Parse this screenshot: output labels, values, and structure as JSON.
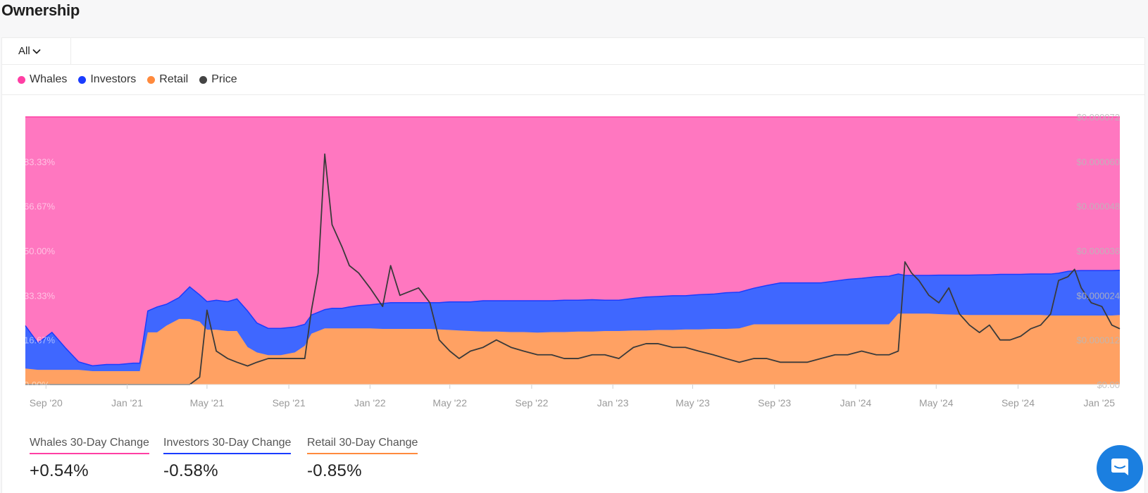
{
  "page": {
    "title": "Ownership"
  },
  "filter": {
    "selected": "All"
  },
  "legend": [
    {
      "label": "Whales",
      "color": "#ff3fa4"
    },
    {
      "label": "Investors",
      "color": "#1a3cff"
    },
    {
      "label": "Retail",
      "color": "#ff8a3d"
    },
    {
      "label": "Price",
      "color": "#444444"
    }
  ],
  "stats": [
    {
      "label": "Whales 30-Day Change",
      "value": "+0.54%",
      "color": "#ff3fa4"
    },
    {
      "label": "Investors 30-Day Change",
      "value": "-0.58%",
      "color": "#1a3cff"
    },
    {
      "label": "Retail 30-Day Change",
      "value": "-0.85%",
      "color": "#ff8a3d"
    }
  ],
  "chart_data": {
    "type": "area",
    "title": "Ownership",
    "x": [
      "2020-08-01",
      "2020-08-20",
      "2020-09-10",
      "2020-10-01",
      "2020-10-20",
      "2020-11-10",
      "2020-12-01",
      "2020-12-20",
      "2021-01-10",
      "2021-01-20",
      "2021-02-01",
      "2021-02-15",
      "2021-03-01",
      "2021-03-20",
      "2021-04-05",
      "2021-04-20",
      "2021-05-01",
      "2021-05-15",
      "2021-06-01",
      "2021-06-15",
      "2021-07-01",
      "2021-07-15",
      "2021-08-01",
      "2021-08-20",
      "2021-09-10",
      "2021-09-25",
      "2021-10-05",
      "2021-10-15",
      "2021-10-25",
      "2021-11-05",
      "2021-11-20",
      "2021-12-01",
      "2021-12-15",
      "2022-01-01",
      "2022-01-20",
      "2022-02-01",
      "2022-02-15",
      "2022-03-01",
      "2022-03-15",
      "2022-04-01",
      "2022-04-15",
      "2022-05-01",
      "2022-05-15",
      "2022-06-01",
      "2022-06-20",
      "2022-07-10",
      "2022-08-01",
      "2022-08-20",
      "2022-09-10",
      "2022-10-01",
      "2022-10-20",
      "2022-11-10",
      "2022-12-01",
      "2022-12-20",
      "2023-01-10",
      "2023-02-01",
      "2023-02-20",
      "2023-03-10",
      "2023-04-01",
      "2023-04-20",
      "2023-05-10",
      "2023-06-01",
      "2023-06-20",
      "2023-07-10",
      "2023-08-01",
      "2023-08-20",
      "2023-09-10",
      "2023-10-01",
      "2023-10-20",
      "2023-11-10",
      "2023-12-01",
      "2023-12-20",
      "2024-01-10",
      "2024-02-01",
      "2024-02-20",
      "2024-03-05",
      "2024-03-15",
      "2024-03-25",
      "2024-04-05",
      "2024-04-20",
      "2024-05-05",
      "2024-05-20",
      "2024-06-05",
      "2024-06-20",
      "2024-07-05",
      "2024-07-20",
      "2024-08-05",
      "2024-08-20",
      "2024-09-05",
      "2024-09-20",
      "2024-10-05",
      "2024-10-20",
      "2024-11-01",
      "2024-11-15",
      "2024-11-25",
      "2024-12-05",
      "2024-12-20",
      "2025-01-05",
      "2025-01-20",
      "2025-02-01"
    ],
    "series": [
      {
        "name": "Retail",
        "axis": "left",
        "stacked": true,
        "values": [
          6,
          5.5,
          5.5,
          5.5,
          5.5,
          5,
          5,
          5,
          5,
          5,
          19.5,
          19.5,
          22,
          24.5,
          24.5,
          23.5,
          20.5,
          20.5,
          20,
          20,
          14,
          12,
          11,
          11,
          12,
          14.5,
          19,
          20,
          21,
          21,
          21,
          21,
          21,
          21,
          20.8,
          20.8,
          20.8,
          20.8,
          20.8,
          20.8,
          20.6,
          20.4,
          20.2,
          20,
          19.8,
          19.8,
          19.6,
          19.6,
          19.4,
          19.6,
          19.6,
          19.8,
          19.8,
          20,
          20,
          20.2,
          20.2,
          20.4,
          20.4,
          20.6,
          20.6,
          20.8,
          20.8,
          21,
          22.5,
          22.5,
          22.5,
          22.5,
          22.5,
          22.5,
          22.5,
          22.5,
          22.5,
          22.5,
          22.5,
          26.5,
          26.5,
          26.5,
          26.5,
          26.5,
          26.3,
          26.2,
          26.1,
          26,
          26,
          26,
          26,
          26,
          26,
          26,
          26,
          25.8,
          25.8,
          25.8,
          25.8,
          25.8,
          25.8,
          25.8,
          25.8,
          26
        ]
      },
      {
        "name": "Investors",
        "axis": "left",
        "stacked": true,
        "values": [
          16,
          10,
          14,
          8,
          3,
          2,
          2.5,
          2.5,
          3,
          3,
          8,
          9.5,
          8,
          8,
          12,
          10,
          10.5,
          11,
          11,
          12,
          13.5,
          11,
          10,
          10,
          9.5,
          8,
          7,
          7,
          7,
          7.5,
          7.5,
          8,
          8.5,
          8.8,
          9.5,
          9.8,
          9.8,
          9.8,
          9.8,
          9.8,
          10,
          10.5,
          10.7,
          10.9,
          11.5,
          11.5,
          11.7,
          11.7,
          11.9,
          11.7,
          11.9,
          11.7,
          11.9,
          11.5,
          11.5,
          12,
          12.5,
          12.5,
          12.8,
          12.6,
          13,
          13,
          13.5,
          13.5,
          13.5,
          14.5,
          15.5,
          15.5,
          15.5,
          15.5,
          16.2,
          16.8,
          17.2,
          17.8,
          18,
          14.8,
          14.3,
          14.3,
          14.3,
          14.3,
          14.6,
          14.7,
          14.8,
          14.9,
          15,
          15,
          15.2,
          15.2,
          15.2,
          15.3,
          15.3,
          15.5,
          15.8,
          16.5,
          16.7,
          16.8,
          16.8,
          16.8,
          16.8,
          16.7
        ]
      },
      {
        "name": "Whales",
        "axis": "left",
        "stacked": true,
        "values": "remainder to 100%"
      },
      {
        "name": "Price",
        "axis": "right",
        "values": [
          0,
          0,
          0,
          0,
          0,
          0,
          0,
          0,
          0,
          0,
          0,
          0,
          0,
          0,
          0,
          2e-06,
          2e-05,
          9e-06,
          7e-06,
          6e-06,
          5e-06,
          6e-06,
          7e-06,
          7e-06,
          7e-06,
          7e-06,
          2e-05,
          3e-05,
          6.2e-05,
          4.3e-05,
          3.7e-05,
          3.2e-05,
          3e-05,
          2.6e-05,
          2.1e-05,
          3.2e-05,
          2.4e-05,
          2.5e-05,
          2.6e-05,
          2.2e-05,
          1.2e-05,
          9e-06,
          7e-06,
          9e-06,
          1e-05,
          1.2e-05,
          1e-05,
          9e-06,
          8e-06,
          8e-06,
          7e-06,
          7e-06,
          8e-06,
          8e-06,
          7e-06,
          1e-05,
          1.1e-05,
          1.1e-05,
          1e-05,
          1e-05,
          9e-06,
          8e-06,
          7e-06,
          6e-06,
          7e-06,
          7e-06,
          6e-06,
          6e-06,
          6e-06,
          7e-06,
          8e-06,
          8e-06,
          9e-06,
          8e-06,
          8e-06,
          9e-06,
          3.3e-05,
          3e-05,
          2.8e-05,
          2.4e-05,
          2.2e-05,
          2.6e-05,
          1.9e-05,
          1.6e-05,
          1.4e-05,
          1.6e-05,
          1.2e-05,
          1.2e-05,
          1.3e-05,
          1.5e-05,
          1.6e-05,
          1.9e-05,
          2.8e-05,
          2.9e-05,
          3.1e-05,
          2.6e-05,
          2.2e-05,
          2.1e-05,
          1.6e-05,
          1.5e-05
        ]
      }
    ],
    "y_left": {
      "ticks": [
        "0.00%",
        "16.67%",
        "33.33%",
        "50.00%",
        "66.67%",
        "83.33%"
      ],
      "range": [
        0,
        100
      ]
    },
    "y_right": {
      "ticks": [
        "$0.00",
        "$0.000012",
        "$0.000024",
        "$0.000036",
        "$0.000048",
        "$0.000060",
        "$0.000072"
      ],
      "range": [
        0,
        7.2e-05
      ]
    },
    "x_ticks": [
      "Sep '20",
      "Jan '21",
      "May '21",
      "Sep '21",
      "Jan '22",
      "May '22",
      "Sep '22",
      "Jan '23",
      "May '23",
      "Sep '23",
      "Jan '24",
      "May '24",
      "Sep '24",
      "Jan '25"
    ],
    "grid": false,
    "colors": {
      "whales": "#ff77c0",
      "whales_line": "#ff3fa4",
      "investors": "#3f67ff",
      "investors_line": "#1a3cff",
      "retail": "#ffa163",
      "price": "#3a3a3a"
    }
  }
}
